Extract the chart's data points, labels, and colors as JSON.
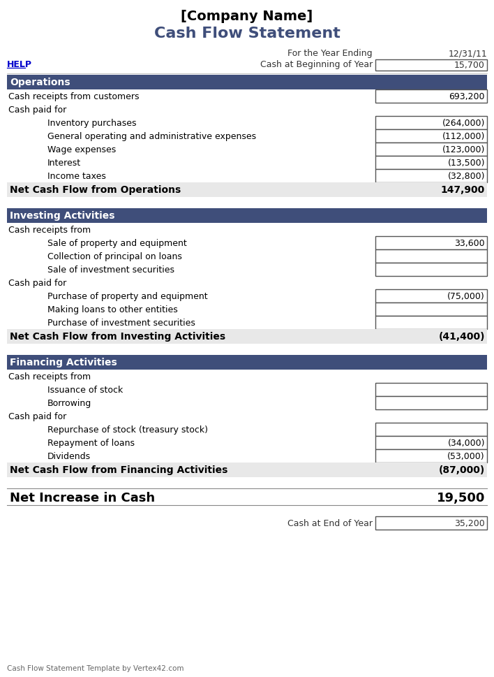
{
  "title1": "[Company Name]",
  "title2": "Cash Flow Statement",
  "header_date_label": "For the Year Ending",
  "header_date_value": "12/31/11",
  "header_cash_label": "Cash at Beginning of Year",
  "header_cash_value": "15,700",
  "help_text": "HELP",
  "section_color": "#3F4E7A",
  "section_text_color": "#FFFFFF",
  "net_row_bg": "#E8E8E8",
  "box_border_color": "#555555",
  "title1_color": "#000000",
  "title2_color": "#3F4E7A",
  "footer_text": "Cash Flow Statement Template by Vertex42.com",
  "help_color": "#0000CC",
  "fig_width": 7.08,
  "fig_height": 9.7,
  "dpi": 100,
  "rows": [
    {
      "type": "section",
      "label": "Operations",
      "value": null,
      "indent": 0
    },
    {
      "type": "data",
      "label": "Cash receipts from customers",
      "value": "693,200",
      "indent": 0,
      "box": true
    },
    {
      "type": "data",
      "label": "Cash paid for",
      "value": null,
      "indent": 0,
      "box": false
    },
    {
      "type": "data",
      "label": "Inventory purchases",
      "value": "(264,000)",
      "indent": 2,
      "box": true
    },
    {
      "type": "data",
      "label": "General operating and administrative expenses",
      "value": "(112,000)",
      "indent": 2,
      "box": true
    },
    {
      "type": "data",
      "label": "Wage expenses",
      "value": "(123,000)",
      "indent": 2,
      "box": true
    },
    {
      "type": "data",
      "label": "Interest",
      "value": "(13,500)",
      "indent": 2,
      "box": true
    },
    {
      "type": "data",
      "label": "Income taxes",
      "value": "(32,800)",
      "indent": 2,
      "box": true
    },
    {
      "type": "net",
      "label": "Net Cash Flow from Operations",
      "value": "147,900",
      "indent": 0
    },
    {
      "type": "spacer"
    },
    {
      "type": "section",
      "label": "Investing Activities",
      "value": null,
      "indent": 0
    },
    {
      "type": "data",
      "label": "Cash receipts from",
      "value": null,
      "indent": 0,
      "box": false
    },
    {
      "type": "data",
      "label": "Sale of property and equipment",
      "value": "33,600",
      "indent": 2,
      "box": true
    },
    {
      "type": "data",
      "label": "Collection of principal on loans",
      "value": "",
      "indent": 2,
      "box": true
    },
    {
      "type": "data",
      "label": "Sale of investment securities",
      "value": "",
      "indent": 2,
      "box": true
    },
    {
      "type": "data",
      "label": "Cash paid for",
      "value": null,
      "indent": 0,
      "box": false
    },
    {
      "type": "data",
      "label": "Purchase of property and equipment",
      "value": "(75,000)",
      "indent": 2,
      "box": true
    },
    {
      "type": "data",
      "label": "Making loans to other entities",
      "value": "",
      "indent": 2,
      "box": true
    },
    {
      "type": "data",
      "label": "Purchase of investment securities",
      "value": "",
      "indent": 2,
      "box": true
    },
    {
      "type": "net",
      "label": "Net Cash Flow from Investing Activities",
      "value": "(41,400)",
      "indent": 0
    },
    {
      "type": "spacer"
    },
    {
      "type": "section",
      "label": "Financing Activities",
      "value": null,
      "indent": 0
    },
    {
      "type": "data",
      "label": "Cash receipts from",
      "value": null,
      "indent": 0,
      "box": false
    },
    {
      "type": "data",
      "label": "Issuance of stock",
      "value": "",
      "indent": 2,
      "box": true
    },
    {
      "type": "data",
      "label": "Borrowing",
      "value": "",
      "indent": 2,
      "box": true
    },
    {
      "type": "data",
      "label": "Cash paid for",
      "value": null,
      "indent": 0,
      "box": false
    },
    {
      "type": "data",
      "label": "Repurchase of stock (treasury stock)",
      "value": "",
      "indent": 2,
      "box": true
    },
    {
      "type": "data",
      "label": "Repayment of loans",
      "value": "(34,000)",
      "indent": 2,
      "box": true
    },
    {
      "type": "data",
      "label": "Dividends",
      "value": "(53,000)",
      "indent": 2,
      "box": true
    },
    {
      "type": "net",
      "label": "Net Cash Flow from Financing Activities",
      "value": "(87,000)",
      "indent": 0
    },
    {
      "type": "spacer"
    },
    {
      "type": "net2",
      "label": "Net Increase in Cash",
      "value": "19,500",
      "indent": 0
    },
    {
      "type": "spacer"
    },
    {
      "type": "footer_row",
      "label": "Cash at End of Year",
      "value": "35,200",
      "indent": 0
    },
    {
      "type": "spacer"
    },
    {
      "type": "spacer"
    }
  ]
}
